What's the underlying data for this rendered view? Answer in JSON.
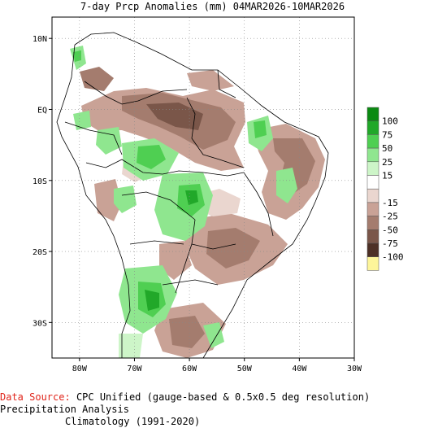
{
  "title": "7-day Prcp Anomalies (mm) 04MAR2026-10MAR2026",
  "axes": {
    "lon": [
      {
        "label": "80W",
        "value": -80
      },
      {
        "label": "70W",
        "value": -70
      },
      {
        "label": "60W",
        "value": -60
      },
      {
        "label": "50W",
        "value": -50
      },
      {
        "label": "40W",
        "value": -40
      },
      {
        "label": "30W",
        "value": -30
      }
    ],
    "lat": [
      {
        "label": "10N",
        "value": 10
      },
      {
        "label": "EQ",
        "value": 0
      },
      {
        "label": "10S",
        "value": -10
      },
      {
        "label": "20S",
        "value": -20
      },
      {
        "label": "30S",
        "value": -30
      }
    ],
    "lon_range": [
      -85,
      -30
    ],
    "lat_range": [
      -35,
      13
    ]
  },
  "legend": {
    "bins": [
      {
        "label": "100",
        "color": "#0b8a12"
      },
      {
        "label": "75",
        "color": "#21a829"
      },
      {
        "label": "50",
        "color": "#4fcf52"
      },
      {
        "label": "25",
        "color": "#8fe68f"
      },
      {
        "label": "15",
        "color": "#cdf5c8"
      },
      {
        "label": "",
        "color": "#ffffff"
      },
      {
        "label": "-15",
        "color": "#ead6cf"
      },
      {
        "label": "-25",
        "color": "#c9a296"
      },
      {
        "label": "-50",
        "color": "#a47c6e"
      },
      {
        "label": "-75",
        "color": "#7a5649"
      },
      {
        "label": "-100",
        "color": "#4d3026"
      },
      {
        "label": "",
        "color": "#fdf59a"
      }
    ]
  },
  "footer": {
    "source_label": "Data Source:",
    "source_text": "CPC Unified (gauge-based & 0.5x0.5 deg resolution) Precipitation Analysis",
    "climatology": "Climatology (1991-2020)"
  }
}
